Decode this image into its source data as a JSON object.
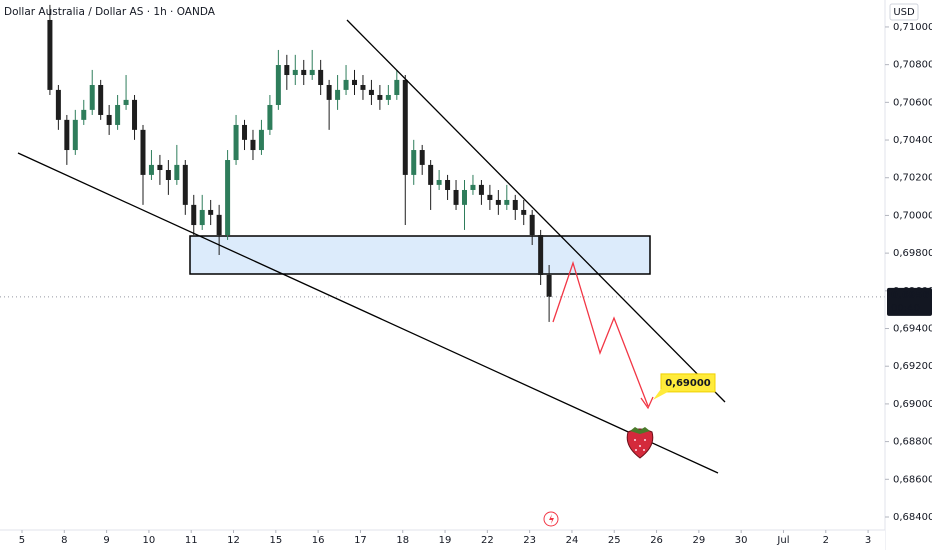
{
  "chart_data": {
    "type": "candlestick",
    "title": "Dollar Australia / Dollar AS · 1h · OANDA",
    "currency": "USD",
    "up_color": "#2e7d5b",
    "down_color": "#1e1e1e",
    "xlim": [
      -0.52,
      20.4
    ],
    "ylim": [
      0.68331,
      0.71143
    ],
    "grid": false,
    "xticks": [
      {
        "value": 0,
        "label": "5"
      },
      {
        "value": 1,
        "label": "8"
      },
      {
        "value": 2,
        "label": "9"
      },
      {
        "value": 3,
        "label": "10"
      },
      {
        "value": 4,
        "label": "11"
      },
      {
        "value": 5,
        "label": "12"
      },
      {
        "value": 6,
        "label": "15"
      },
      {
        "value": 7,
        "label": "16"
      },
      {
        "value": 8,
        "label": "17"
      },
      {
        "value": 9,
        "label": "18"
      },
      {
        "value": 10,
        "label": "19"
      },
      {
        "value": 11,
        "label": "22"
      },
      {
        "value": 12,
        "label": "23"
      },
      {
        "value": 13,
        "label": "24"
      },
      {
        "value": 14,
        "label": "25"
      },
      {
        "value": 15,
        "label": "26"
      },
      {
        "value": 16,
        "label": "29"
      },
      {
        "value": 17,
        "label": "30"
      },
      {
        "value": 18,
        "label": "Jul"
      },
      {
        "value": 19,
        "label": "2"
      },
      {
        "value": 20,
        "label": "3"
      }
    ],
    "yticks": [
      {
        "value": 0.71,
        "label": "0,71000"
      },
      {
        "value": 0.708,
        "label": "0,70800"
      },
      {
        "value": 0.706,
        "label": "0,70600"
      },
      {
        "value": 0.704,
        "label": "0,70400"
      },
      {
        "value": 0.702,
        "label": "0,70200"
      },
      {
        "value": 0.7,
        "label": "0,70000"
      },
      {
        "value": 0.698,
        "label": "0,69800"
      },
      {
        "value": 0.696,
        "label": "0,69600"
      },
      {
        "value": 0.694,
        "label": "0,69400"
      },
      {
        "value": 0.692,
        "label": "0,69200"
      },
      {
        "value": 0.69,
        "label": "0,69000"
      },
      {
        "value": 0.688,
        "label": "0,68800"
      },
      {
        "value": 0.686,
        "label": "0,68600"
      },
      {
        "value": 0.684,
        "label": "0,68400"
      }
    ],
    "last_price": {
      "value": 0.69568,
      "label": "0,69568"
    },
    "countdown": "00:40",
    "target": {
      "value": 0.69,
      "label": "0,69000"
    },
    "x": [
      0.66,
      0.86,
      1.06,
      1.26,
      1.46,
      1.66,
      1.86,
      2.06,
      2.26,
      2.46,
      2.66,
      2.86,
      3.06,
      3.26,
      3.46,
      3.66,
      3.86,
      4.06,
      4.26,
      4.46,
      4.66,
      4.86,
      5.06,
      5.26,
      5.46,
      5.66,
      5.86,
      6.06,
      6.26,
      6.46,
      6.66,
      6.86,
      7.06,
      7.26,
      7.46,
      7.66,
      7.86,
      8.06,
      8.26,
      8.46,
      8.66,
      8.86,
      9.06,
      9.26,
      9.46,
      9.66,
      9.86,
      10.06,
      10.26,
      10.46,
      10.66,
      10.86,
      11.06,
      11.26,
      11.46,
      11.66,
      11.86,
      12.06,
      12.26,
      12.46
    ],
    "ohlc": [
      [
        0.71037,
        0.71117,
        0.70639,
        0.70666
      ],
      [
        0.70666,
        0.70692,
        0.70454,
        0.70507
      ],
      [
        0.70507,
        0.70533,
        0.70268,
        0.70347
      ],
      [
        0.70347,
        0.7056,
        0.70321,
        0.70507
      ],
      [
        0.70507,
        0.70613,
        0.7048,
        0.7056
      ],
      [
        0.7056,
        0.70772,
        0.70533,
        0.70692
      ],
      [
        0.70692,
        0.70719,
        0.70507,
        0.70533
      ],
      [
        0.70533,
        0.70586,
        0.70427,
        0.7048
      ],
      [
        0.7048,
        0.70639,
        0.70454,
        0.70586
      ],
      [
        0.70586,
        0.70745,
        0.7056,
        0.70613
      ],
      [
        0.70613,
        0.70639,
        0.70401,
        0.70454
      ],
      [
        0.70454,
        0.7048,
        0.70056,
        0.70215
      ],
      [
        0.70215,
        0.70347,
        0.70188,
        0.70268
      ],
      [
        0.70268,
        0.70321,
        0.70162,
        0.70241
      ],
      [
        0.70241,
        0.70294,
        0.70109,
        0.70188
      ],
      [
        0.70188,
        0.70374,
        0.70162,
        0.70268
      ],
      [
        0.70268,
        0.70294,
        0.70003,
        0.70056
      ],
      [
        0.70056,
        0.70109,
        0.69896,
        0.69949
      ],
      [
        0.69949,
        0.70109,
        0.69923,
        0.70029
      ],
      [
        0.70029,
        0.70082,
        0.69949,
        0.70003
      ],
      [
        0.70003,
        0.70056,
        0.6979,
        0.69896
      ],
      [
        0.69896,
        0.70347,
        0.6987,
        0.70294
      ],
      [
        0.70294,
        0.70533,
        0.70268,
        0.7048
      ],
      [
        0.7048,
        0.70507,
        0.70347,
        0.70401
      ],
      [
        0.70401,
        0.70454,
        0.70294,
        0.70347
      ],
      [
        0.70347,
        0.70507,
        0.70321,
        0.70454
      ],
      [
        0.70454,
        0.70639,
        0.70427,
        0.70586
      ],
      [
        0.70586,
        0.70878,
        0.7056,
        0.70798
      ],
      [
        0.70798,
        0.70852,
        0.70666,
        0.70745
      ],
      [
        0.70745,
        0.70852,
        0.70692,
        0.70772
      ],
      [
        0.70772,
        0.70825,
        0.70692,
        0.70745
      ],
      [
        0.70745,
        0.70878,
        0.70719,
        0.70772
      ],
      [
        0.70772,
        0.70825,
        0.70639,
        0.70692
      ],
      [
        0.70692,
        0.70719,
        0.70454,
        0.70613
      ],
      [
        0.70613,
        0.70745,
        0.7056,
        0.70666
      ],
      [
        0.70666,
        0.70798,
        0.70639,
        0.70719
      ],
      [
        0.70719,
        0.70772,
        0.70639,
        0.70692
      ],
      [
        0.70692,
        0.70745,
        0.70613,
        0.70666
      ],
      [
        0.70666,
        0.70719,
        0.70586,
        0.70639
      ],
      [
        0.70639,
        0.70692,
        0.7056,
        0.70613
      ],
      [
        0.70613,
        0.70692,
        0.70586,
        0.70639
      ],
      [
        0.70639,
        0.70772,
        0.70613,
        0.70719
      ],
      [
        0.70719,
        0.70745,
        0.69949,
        0.70215
      ],
      [
        0.70215,
        0.70401,
        0.70162,
        0.70347
      ],
      [
        0.70347,
        0.70374,
        0.70215,
        0.70268
      ],
      [
        0.70268,
        0.70294,
        0.70029,
        0.70162
      ],
      [
        0.70162,
        0.70241,
        0.70135,
        0.70188
      ],
      [
        0.70188,
        0.70215,
        0.70082,
        0.70135
      ],
      [
        0.70135,
        0.70188,
        0.70029,
        0.70056
      ],
      [
        0.70056,
        0.70188,
        0.69923,
        0.70135
      ],
      [
        0.70135,
        0.70215,
        0.70109,
        0.70162
      ],
      [
        0.70162,
        0.70188,
        0.70056,
        0.70109
      ],
      [
        0.70109,
        0.70162,
        0.70029,
        0.70082
      ],
      [
        0.70082,
        0.70135,
        0.70003,
        0.70056
      ],
      [
        0.70056,
        0.70162,
        0.70029,
        0.70082
      ],
      [
        0.70082,
        0.70109,
        0.69976,
        0.70029
      ],
      [
        0.70029,
        0.70082,
        0.69949,
        0.70003
      ],
      [
        0.70003,
        0.70029,
        0.69843,
        0.69896
      ],
      [
        0.69896,
        0.69923,
        0.69631,
        0.69684
      ],
      [
        0.69684,
        0.69737,
        0.69435,
        0.69568
      ]
    ]
  }
}
